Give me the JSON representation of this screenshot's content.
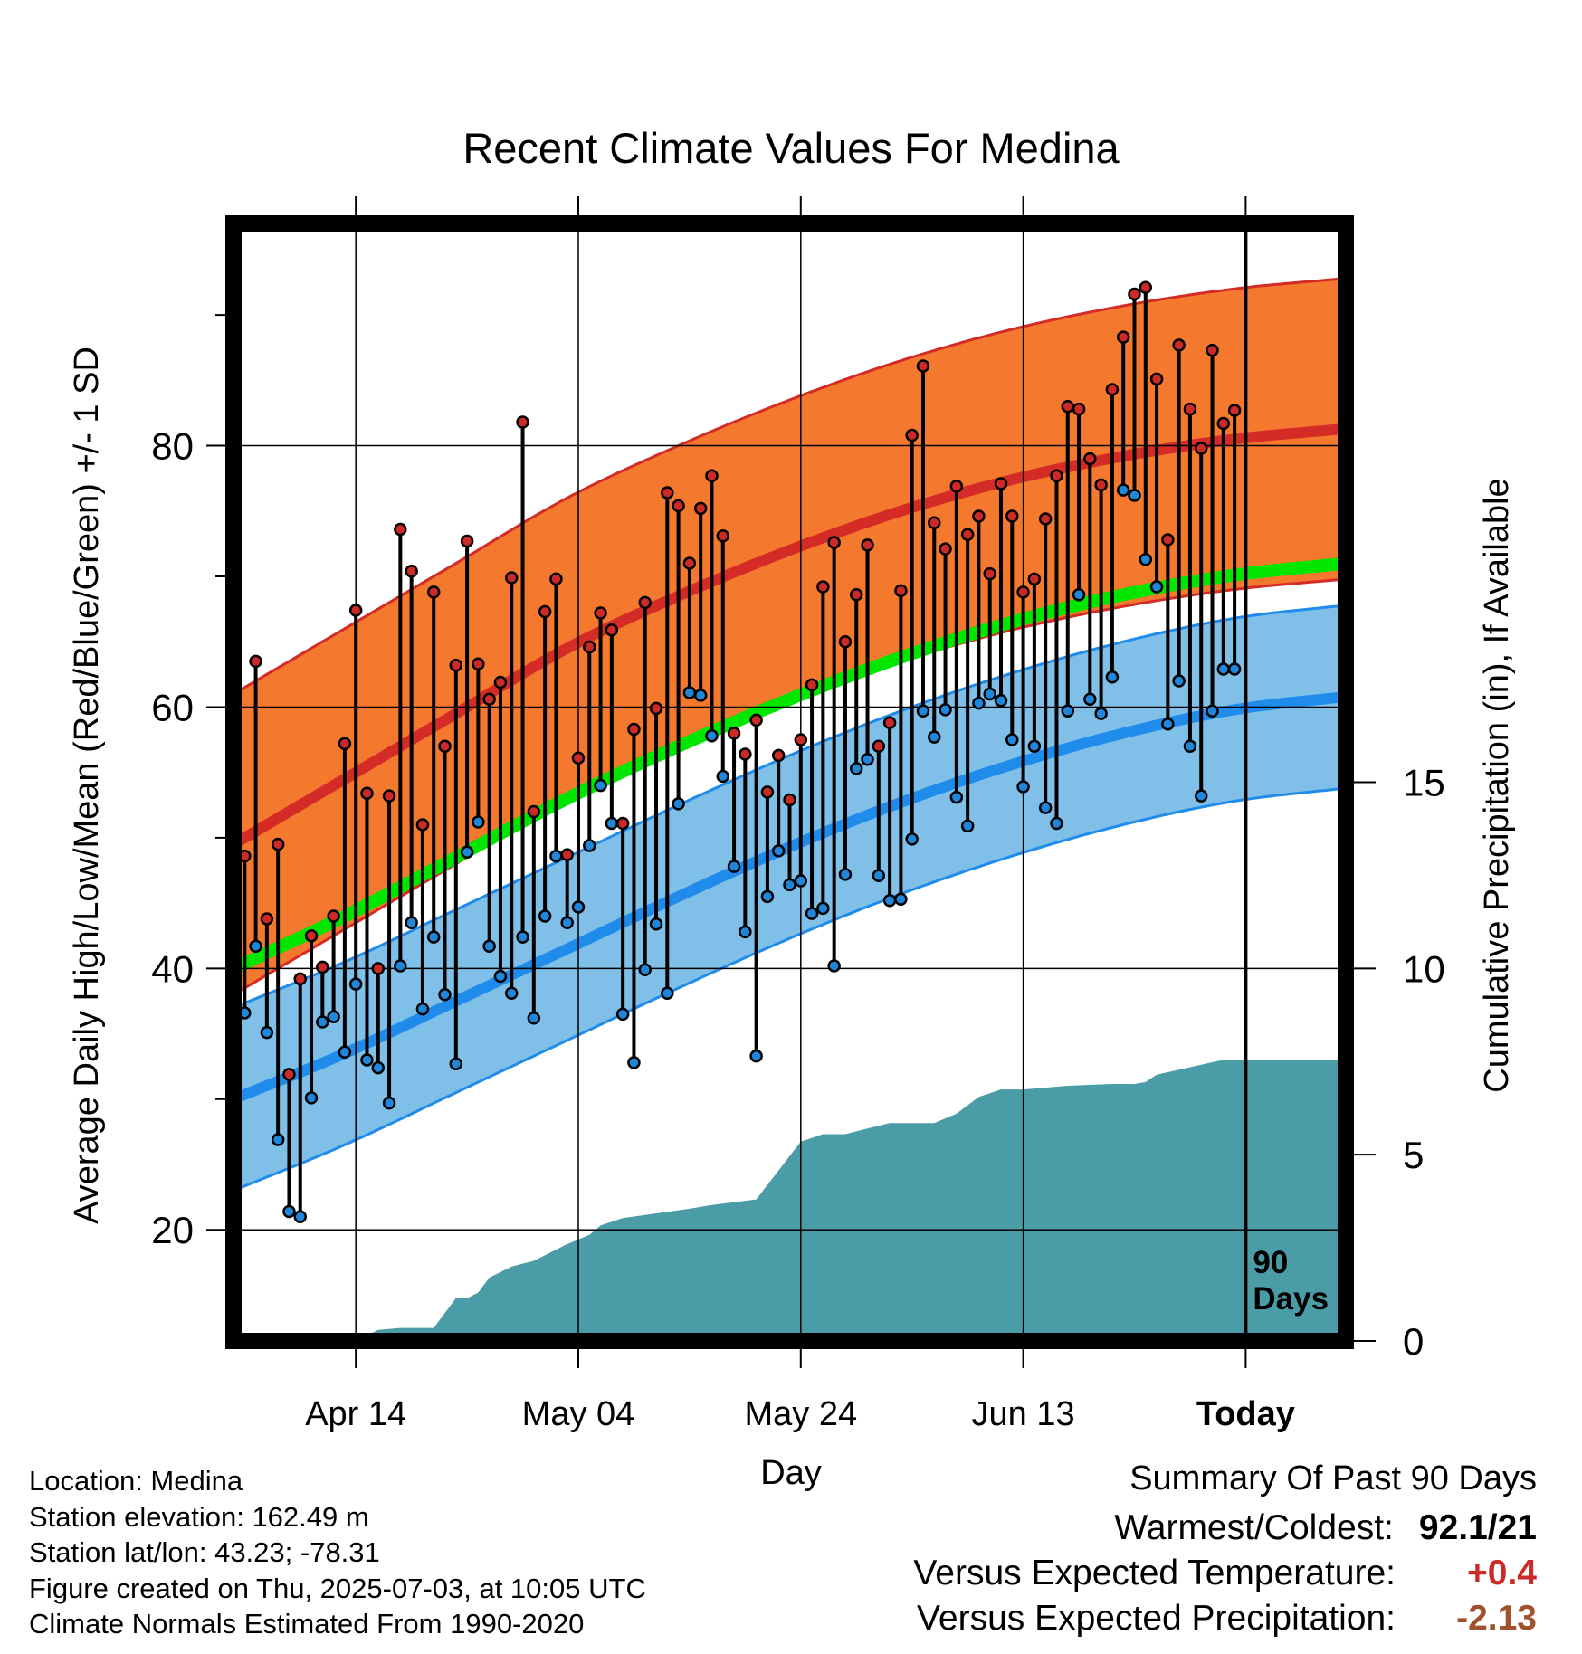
{
  "colors": {
    "high_band": "#f4792f",
    "high_band_edge": "#d42b27",
    "high_mean": "#d42b27",
    "low_band": "#80c0e8",
    "low_band_edge": "#1f8bea",
    "low_mean": "#1f8bea",
    "daily_mean": "#00e600",
    "precip_fill": "#4a9ca6",
    "high_marker": "#cc2a27",
    "low_marker": "#1f86d9",
    "temp_change_positive": "#cc2a27",
    "precip_change_negative": "#a0522d"
  },
  "chart_data": {
    "type": "line",
    "title": "Recent Climate Values For Medina",
    "xlabel": "Day",
    "ylabel": "Average Daily High/Low/Mean (Red/Blue/Green) +/- 1 SD",
    "y2label": "Cumulative Precipitation (in), If Available",
    "x_tick_labels": [
      "Apr 14",
      "May 04",
      "May 24",
      "Jun 13",
      "Today"
    ],
    "x_tick_offsets": [
      -80,
      -60,
      -40,
      -20,
      0
    ],
    "xlim": [
      -91,
      9
    ],
    "ylim": [
      11.5,
      97
    ],
    "y_ticks": [
      20,
      40,
      60,
      80
    ],
    "y2lim": [
      0,
      30
    ],
    "y2_ticks": [
      0,
      5,
      10,
      15
    ],
    "grid": true,
    "today_marker_label": "90 Days",
    "normals": {
      "x": [
        -91,
        -81,
        -71,
        -61,
        -51,
        -41,
        -31,
        -21,
        -11,
        -1,
        9
      ],
      "high_mean": [
        49.5,
        54.5,
        59.5,
        64.5,
        68.5,
        72.0,
        75.0,
        77.4,
        79.2,
        80.5,
        81.3
      ],
      "high_sd": 11.5,
      "low_mean": [
        30.0,
        33.5,
        37.5,
        41.5,
        45.5,
        49.3,
        52.7,
        55.6,
        58.0,
        59.8,
        60.8
      ],
      "low_sd": 7.0,
      "mean": [
        40.0,
        44.0,
        48.5,
        53.0,
        57.0,
        60.6,
        63.8,
        66.5,
        68.6,
        70.1,
        71.0
      ]
    },
    "series": [
      {
        "name": "High",
        "x": [
          -90,
          -89,
          -88,
          -87,
          -86,
          -85,
          -84,
          -83,
          -82,
          -81,
          -80,
          -79,
          -78,
          -77,
          -76,
          -75,
          -74,
          -73,
          -72,
          -71,
          -70,
          -69,
          -68,
          -67,
          -66,
          -65,
          -64,
          -63,
          -62,
          -61,
          -60,
          -59,
          -58,
          -57,
          -56,
          -55,
          -54,
          -53,
          -52,
          -51,
          -50,
          -49,
          -48,
          -47,
          -46,
          -45,
          -44,
          -43,
          -42,
          -41,
          -40,
          -39,
          -38,
          -37,
          -36,
          -35,
          -34,
          -33,
          -32,
          -31,
          -30,
          -29,
          -28,
          -27,
          -26,
          -25,
          -24,
          -23,
          -22,
          -21,
          -20,
          -19,
          -18,
          -17,
          -16,
          -15,
          -14,
          -13,
          -12,
          -11,
          -10,
          -9,
          -8,
          -7,
          -6,
          -5,
          -4,
          -3,
          -2,
          -1
        ],
        "values": [
          48.6,
          63.5,
          43.8,
          49.5,
          31.9,
          39.2,
          42.5,
          40.1,
          44.0,
          57.2,
          67.4,
          53.4,
          40.0,
          53.2,
          73.6,
          70.4,
          51.0,
          68.8,
          57.0,
          63.2,
          72.7,
          63.3,
          60.6,
          61.9,
          69.9,
          81.8,
          52.0,
          67.3,
          69.8,
          48.7,
          56.1,
          64.6,
          67.2,
          65.9,
          51.1,
          58.3,
          68.0,
          59.9,
          76.4,
          75.4,
          71.0,
          75.2,
          77.7,
          73.1,
          58.0,
          56.4,
          59.0,
          53.5,
          56.3,
          52.9,
          57.5,
          61.7,
          69.2,
          72.6,
          65.0,
          68.6,
          72.4,
          57.0,
          58.8,
          68.9,
          80.8,
          86.1,
          74.1,
          72.1,
          76.9,
          73.2,
          74.6,
          70.2,
          77.1,
          74.6,
          68.8,
          69.8,
          74.4,
          77.7,
          83.0,
          82.8,
          79.0,
          77.0,
          84.3,
          88.3,
          91.6,
          92.1,
          85.1,
          72.8,
          87.7,
          82.8,
          79.8,
          87.3,
          81.7,
          82.7
        ]
      },
      {
        "name": "Low",
        "x": [
          -90,
          -89,
          -88,
          -87,
          -86,
          -85,
          -84,
          -83,
          -82,
          -81,
          -80,
          -79,
          -78,
          -77,
          -76,
          -75,
          -74,
          -73,
          -72,
          -71,
          -70,
          -69,
          -68,
          -67,
          -66,
          -65,
          -64,
          -63,
          -62,
          -61,
          -60,
          -59,
          -58,
          -57,
          -56,
          -55,
          -54,
          -53,
          -52,
          -51,
          -50,
          -49,
          -48,
          -47,
          -46,
          -45,
          -44,
          -43,
          -42,
          -41,
          -40,
          -39,
          -38,
          -37,
          -36,
          -35,
          -34,
          -33,
          -32,
          -31,
          -30,
          -29,
          -28,
          -27,
          -26,
          -25,
          -24,
          -23,
          -22,
          -21,
          -20,
          -19,
          -18,
          -17,
          -16,
          -15,
          -14,
          -13,
          -12,
          -11,
          -10,
          -9,
          -8,
          -7,
          -6,
          -5,
          -4,
          -3,
          -2,
          -1
        ],
        "values": [
          36.6,
          41.7,
          35.1,
          26.9,
          21.4,
          21.0,
          30.1,
          35.9,
          36.3,
          33.6,
          38.8,
          33.0,
          32.4,
          29.7,
          40.2,
          43.5,
          36.9,
          42.4,
          38.0,
          32.7,
          48.9,
          51.2,
          41.7,
          39.4,
          38.1,
          42.4,
          36.2,
          44.0,
          48.6,
          43.5,
          44.7,
          49.4,
          54.0,
          51.1,
          36.5,
          32.8,
          39.9,
          43.4,
          38.1,
          52.6,
          61.1,
          60.9,
          57.8,
          54.7,
          47.8,
          42.8,
          33.3,
          45.5,
          49.0,
          46.4,
          46.7,
          44.2,
          44.6,
          40.2,
          47.2,
          55.3,
          56.0,
          47.1,
          45.2,
          45.3,
          49.9,
          59.7,
          57.7,
          59.8,
          53.1,
          50.9,
          60.3,
          61.0,
          60.5,
          57.5,
          53.9,
          57.0,
          52.3,
          51.1,
          59.7,
          68.6,
          60.6,
          59.5,
          62.3,
          76.6,
          76.2,
          71.3,
          69.2,
          58.7,
          62.0,
          57.0,
          53.2,
          59.7,
          62.9,
          62.9
        ]
      }
    ],
    "precip": {
      "x": [
        -90,
        -80,
        -78,
        -76,
        -73,
        -71,
        -70,
        -69,
        -68,
        -66,
        -64,
        -62,
        -61,
        -59,
        -58,
        -56,
        -50,
        -48,
        -44,
        -40,
        -38,
        -36,
        -34,
        -32,
        -28,
        -26,
        -24,
        -22,
        -20,
        -16,
        -12,
        -11,
        -10,
        -9,
        -8,
        -2,
        9
      ],
      "values": [
        0.0,
        0.0,
        0.3,
        0.35,
        0.35,
        1.15,
        1.15,
        1.3,
        1.7,
        2.0,
        2.15,
        2.45,
        2.6,
        2.85,
        3.1,
        3.3,
        3.55,
        3.65,
        3.8,
        5.35,
        5.55,
        5.55,
        5.7,
        5.85,
        5.85,
        6.1,
        6.55,
        6.75,
        6.75,
        6.85,
        6.9,
        6.9,
        6.9,
        6.95,
        7.15,
        7.55,
        7.55
      ]
    }
  },
  "info": {
    "location": "Location: Medina",
    "elevation": "Station elevation: 162.49 m",
    "latlon": "Station lat/lon: 43.23; -78.31",
    "created": "Figure created on Thu, 2025-07-03, at 10:05 UTC",
    "normals_period": "Climate Normals Estimated From 1990-2020"
  },
  "summary": {
    "title": "Summary Of Past 90 Days",
    "warmest_coldest_label": "Warmest/Coldest:",
    "warmest_coldest_value": "92.1/21",
    "temp_label": "Versus Expected Temperature:",
    "temp_value": "+0.4",
    "precip_label": "Versus Expected Precipitation:",
    "precip_value": "-2.13"
  }
}
